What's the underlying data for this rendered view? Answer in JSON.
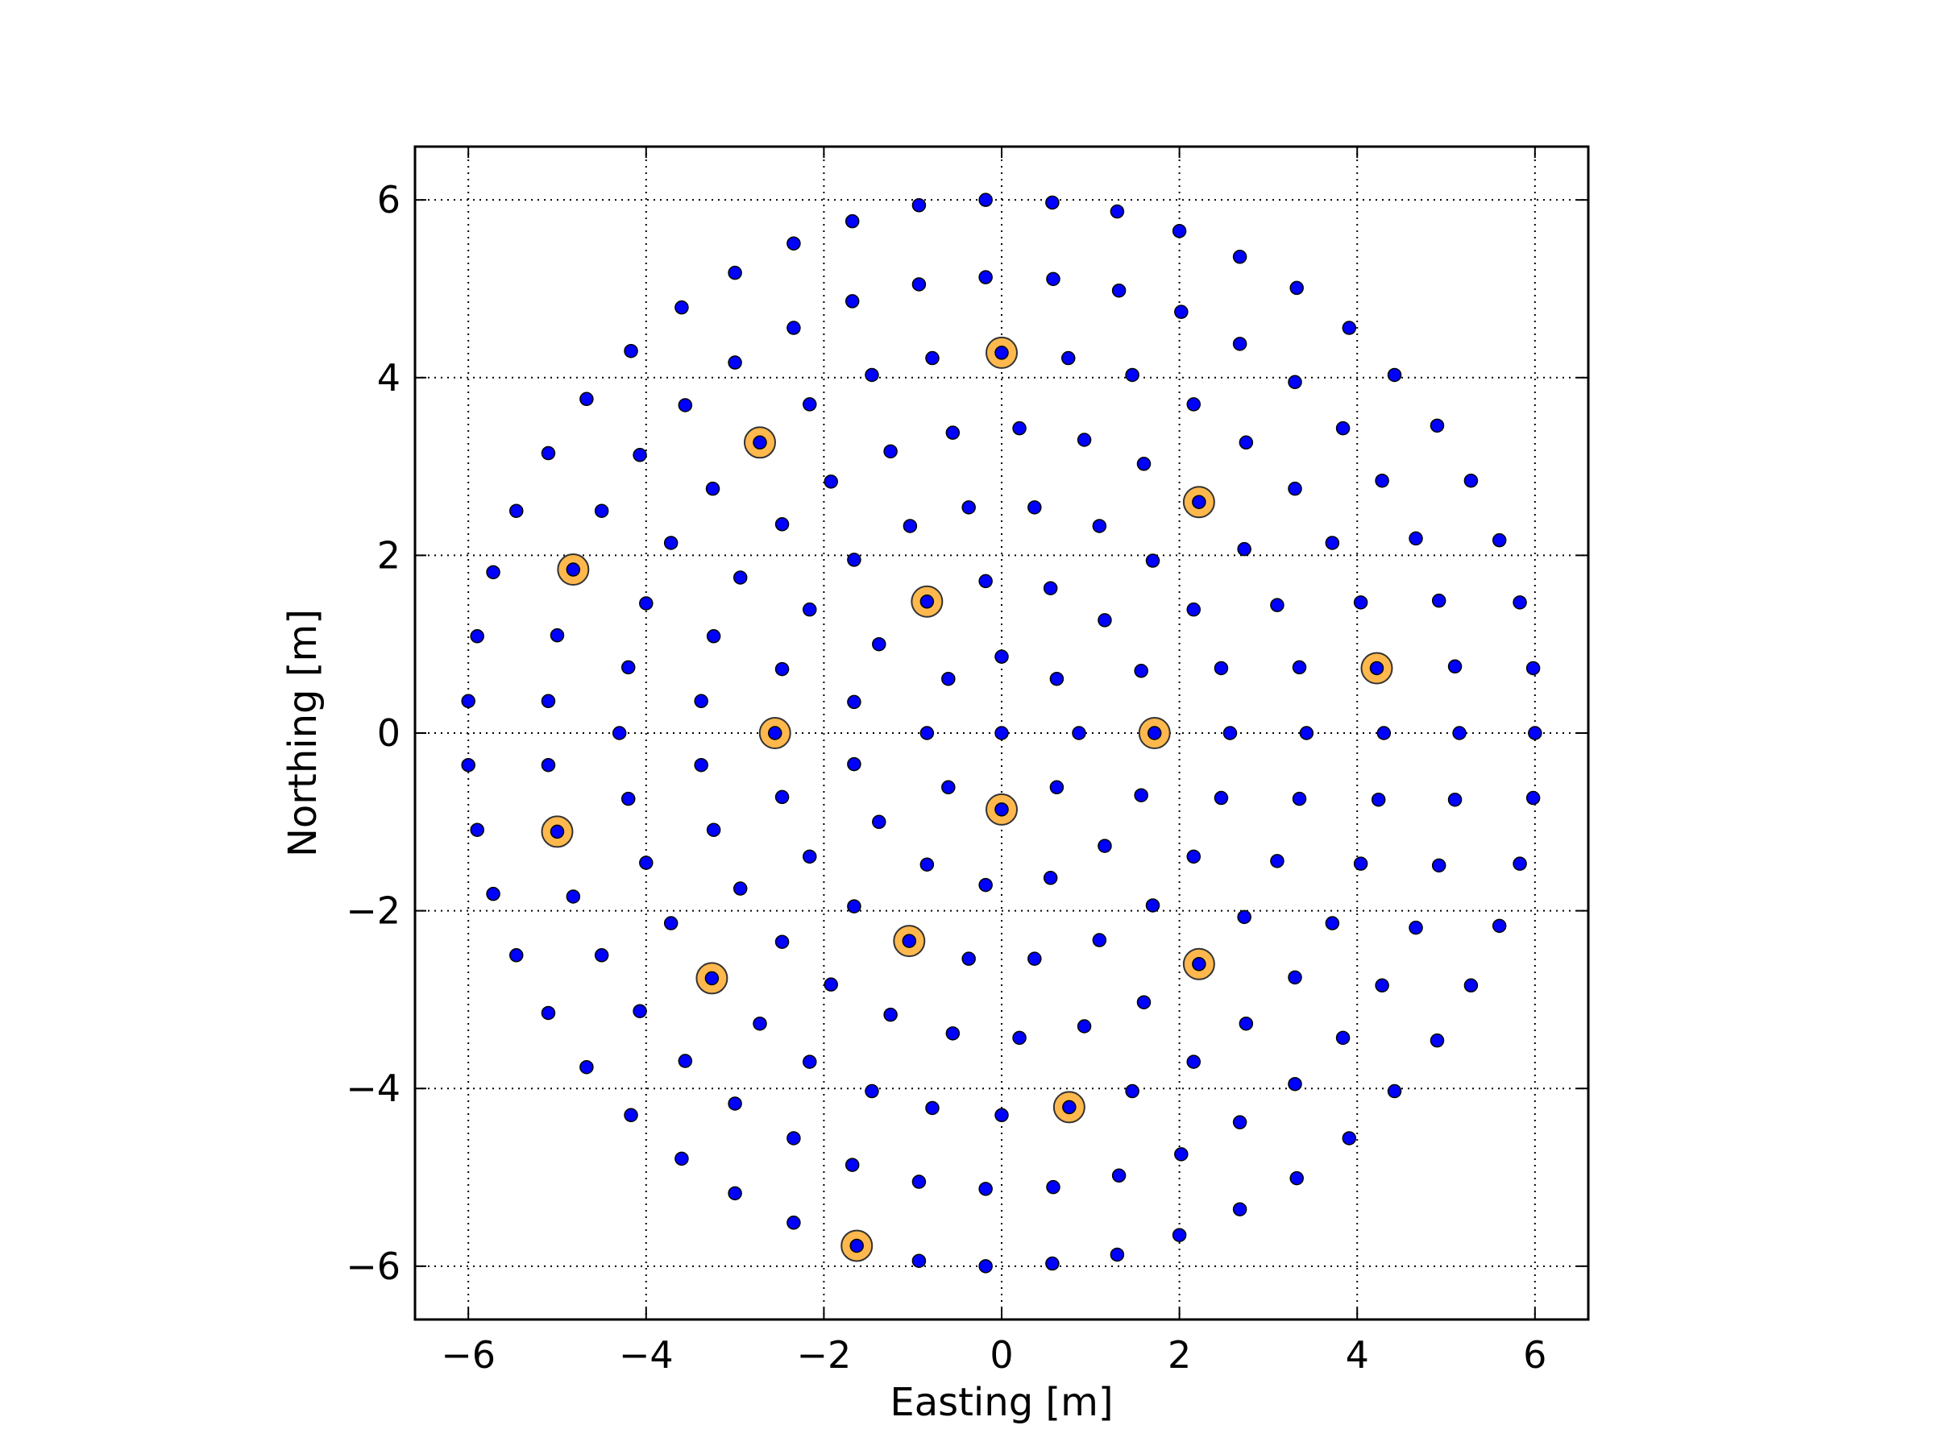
{
  "chart_data": {
    "type": "scatter",
    "title": "",
    "xlabel": "Easting [m]",
    "ylabel": "Northing [m]",
    "xlim": [
      -6.6,
      6.6
    ],
    "ylim": [
      -6.6,
      6.6
    ],
    "xticks": [
      -6,
      -4,
      -2,
      0,
      2,
      4,
      6
    ],
    "yticks": [
      -6,
      -4,
      -2,
      0,
      2,
      4,
      6
    ],
    "xtick_labels": [
      "−6",
      "−4",
      "−2",
      "0",
      "2",
      "4",
      "6"
    ],
    "ytick_labels": [
      "−6",
      "−4",
      "−2",
      "0",
      "2",
      "4",
      "6"
    ],
    "grid": true,
    "legend": "none",
    "colors": {
      "points": "#0000ff",
      "highlight": "#ffb84d"
    },
    "series": [
      {
        "values": [
          [
            -0.18,
            6.0
          ],
          [
            0.57,
            5.97
          ],
          [
            1.3,
            5.87
          ],
          [
            2.0,
            5.65
          ],
          [
            2.68,
            5.36
          ],
          [
            3.32,
            5.01
          ],
          [
            3.91,
            4.56
          ],
          [
            4.42,
            4.03
          ],
          [
            -0.18,
            5.13
          ],
          [
            0.58,
            5.11
          ],
          [
            1.32,
            4.98
          ],
          [
            2.02,
            4.74
          ],
          [
            2.68,
            4.38
          ],
          [
            3.3,
            3.95
          ],
          [
            3.84,
            3.43
          ],
          [
            4.9,
            3.46
          ],
          [
            0.2,
            3.43
          ],
          [
            0.93,
            3.3
          ],
          [
            1.6,
            3.03
          ],
          [
            2.16,
            3.7
          ],
          [
            2.75,
            3.27
          ],
          [
            3.3,
            2.75
          ],
          [
            4.28,
            2.84
          ],
          [
            5.28,
            2.84
          ],
          [
            -0.78,
            4.22
          ],
          [
            0.75,
            4.22
          ],
          [
            1.47,
            4.03
          ],
          [
            0.37,
            2.54
          ],
          [
            1.1,
            2.33
          ],
          [
            1.7,
            1.94
          ],
          [
            2.73,
            2.07
          ],
          [
            3.72,
            2.14
          ],
          [
            4.66,
            2.19
          ],
          [
            5.6,
            2.17
          ],
          [
            -0.18,
            1.71
          ],
          [
            0.55,
            1.63
          ],
          [
            1.16,
            1.27
          ],
          [
            2.16,
            1.39
          ],
          [
            3.1,
            1.44
          ],
          [
            4.04,
            1.47
          ],
          [
            4.92,
            1.49
          ],
          [
            5.83,
            1.47
          ],
          [
            0.0,
            0.86
          ],
          [
            0.62,
            0.61
          ],
          [
            1.57,
            0.7
          ],
          [
            2.47,
            0.73
          ],
          [
            3.35,
            0.74
          ],
          [
            5.1,
            0.75
          ],
          [
            5.98,
            0.73
          ],
          [
            -0.84,
            0.0
          ],
          [
            0.0,
            0.0
          ],
          [
            0.87,
            0.0
          ],
          [
            2.57,
            0.0
          ],
          [
            3.43,
            0.0
          ],
          [
            4.3,
            0.0
          ],
          [
            5.15,
            0.0
          ],
          [
            6.0,
            0.0
          ],
          [
            -0.18,
            -1.71
          ],
          [
            0.55,
            -1.63
          ],
          [
            1.16,
            -1.27
          ],
          [
            2.16,
            -1.39
          ],
          [
            3.1,
            -1.44
          ],
          [
            4.04,
            -1.47
          ],
          [
            4.92,
            -1.49
          ],
          [
            5.83,
            -1.47
          ],
          [
            0.62,
            -0.61
          ],
          [
            1.57,
            -0.7
          ],
          [
            2.47,
            -0.73
          ],
          [
            3.35,
            -0.74
          ],
          [
            4.24,
            -0.75
          ],
          [
            5.1,
            -0.75
          ],
          [
            5.98,
            -0.73
          ],
          [
            -0.6,
            -0.61
          ],
          [
            -0.6,
            0.61
          ],
          [
            -1.38,
            -1.0
          ],
          [
            -1.38,
            1.0
          ],
          [
            -1.66,
            -0.35
          ],
          [
            -1.66,
            0.35
          ],
          [
            -0.84,
            -1.48
          ],
          [
            -1.66,
            -1.95
          ],
          [
            -1.66,
            1.95
          ],
          [
            -1.03,
            2.33
          ],
          [
            -0.37,
            2.54
          ],
          [
            -1.25,
            3.17
          ],
          [
            -0.55,
            3.38
          ],
          [
            -1.46,
            4.03
          ],
          [
            -0.93,
            5.05
          ],
          [
            -0.93,
            5.94
          ],
          [
            -1.68,
            5.76
          ],
          [
            -1.68,
            4.86
          ],
          [
            -2.34,
            5.51
          ],
          [
            -2.34,
            4.56
          ],
          [
            -3.0,
            5.18
          ],
          [
            -3.0,
            4.17
          ],
          [
            -3.6,
            4.79
          ],
          [
            -4.17,
            4.3
          ],
          [
            -4.67,
            3.76
          ],
          [
            -5.1,
            3.15
          ],
          [
            -5.46,
            2.5
          ],
          [
            -5.72,
            1.81
          ],
          [
            -5.9,
            1.09
          ],
          [
            -6.0,
            0.36
          ],
          [
            -6.0,
            -0.36
          ],
          [
            -5.9,
            -1.09
          ],
          [
            -5.72,
            -1.81
          ],
          [
            -5.46,
            -2.5
          ],
          [
            -5.1,
            -3.15
          ],
          [
            -4.67,
            -3.76
          ],
          [
            -4.17,
            -4.3
          ],
          [
            -3.6,
            -4.79
          ],
          [
            -3.0,
            -5.18
          ],
          [
            -2.34,
            -5.51
          ],
          [
            -0.93,
            -5.94
          ],
          [
            -0.18,
            -6.0
          ],
          [
            0.57,
            -5.97
          ],
          [
            1.3,
            -5.87
          ],
          [
            2.0,
            -5.65
          ],
          [
            2.68,
            -5.36
          ],
          [
            3.32,
            -5.01
          ],
          [
            3.91,
            -4.56
          ],
          [
            4.42,
            -4.03
          ],
          [
            -2.16,
            3.7
          ],
          [
            -3.56,
            3.69
          ],
          [
            -4.07,
            3.13
          ],
          [
            -3.25,
            2.75
          ],
          [
            -2.47,
            2.35
          ],
          [
            -1.92,
            2.83
          ],
          [
            -3.72,
            2.14
          ],
          [
            -4.5,
            2.5
          ],
          [
            -2.94,
            1.75
          ],
          [
            -2.16,
            1.39
          ],
          [
            -4.0,
            1.46
          ],
          [
            -3.24,
            1.09
          ],
          [
            -5.0,
            1.1
          ],
          [
            -4.2,
            0.74
          ],
          [
            -2.47,
            0.72
          ],
          [
            -5.1,
            0.36
          ],
          [
            -3.38,
            0.36
          ],
          [
            -4.3,
            0.0
          ],
          [
            -5.1,
            -0.36
          ],
          [
            -3.38,
            -0.36
          ],
          [
            -4.2,
            -0.74
          ],
          [
            -2.47,
            -0.72
          ],
          [
            -3.24,
            -1.09
          ],
          [
            -4.0,
            -1.46
          ],
          [
            -2.16,
            -1.39
          ],
          [
            -2.94,
            -1.75
          ],
          [
            -4.82,
            -1.84
          ],
          [
            -3.72,
            -2.14
          ],
          [
            -2.47,
            -2.35
          ],
          [
            -4.5,
            -2.5
          ],
          [
            -4.07,
            -3.13
          ],
          [
            -2.72,
            -3.27
          ],
          [
            -1.92,
            -2.83
          ],
          [
            -3.56,
            -3.69
          ],
          [
            -2.16,
            -3.7
          ],
          [
            -1.25,
            -3.17
          ],
          [
            -0.55,
            -3.38
          ],
          [
            -0.37,
            -2.54
          ],
          [
            -1.46,
            -4.03
          ],
          [
            -0.78,
            -4.22
          ],
          [
            0.0,
            -4.3
          ],
          [
            -0.93,
            -5.05
          ],
          [
            -1.68,
            -4.86
          ],
          [
            -2.34,
            -4.56
          ],
          [
            -3.0,
            -4.17
          ],
          [
            -0.18,
            -5.13
          ],
          [
            0.58,
            -5.11
          ],
          [
            1.32,
            -4.98
          ],
          [
            2.02,
            -4.74
          ],
          [
            2.68,
            -4.38
          ],
          [
            3.3,
            -3.95
          ],
          [
            3.84,
            -3.43
          ],
          [
            4.9,
            -3.46
          ],
          [
            0.2,
            -3.43
          ],
          [
            0.93,
            -3.3
          ],
          [
            1.6,
            -3.03
          ],
          [
            2.16,
            -3.7
          ],
          [
            2.75,
            -3.27
          ],
          [
            3.3,
            -2.75
          ],
          [
            4.28,
            -2.84
          ],
          [
            5.28,
            -2.84
          ],
          [
            0.37,
            -2.54
          ],
          [
            1.1,
            -2.33
          ],
          [
            1.7,
            -1.94
          ],
          [
            2.73,
            -2.07
          ],
          [
            3.72,
            -2.14
          ],
          [
            4.66,
            -2.19
          ],
          [
            5.6,
            -2.17
          ],
          [
            1.47,
            -4.03
          ]
        ]
      },
      {
        "values": [
          [
            0.0,
            4.28
          ],
          [
            -2.72,
            3.27
          ],
          [
            2.22,
            2.6
          ],
          [
            -4.82,
            1.84
          ],
          [
            -0.84,
            1.48
          ],
          [
            4.22,
            0.73
          ],
          [
            -2.55,
            0.0
          ],
          [
            1.72,
            0.0
          ],
          [
            0.0,
            -0.86
          ],
          [
            -5.0,
            -1.11
          ],
          [
            -1.04,
            -2.34
          ],
          [
            2.22,
            -2.6
          ],
          [
            -3.26,
            -2.76
          ],
          [
            0.76,
            -4.21
          ],
          [
            -1.63,
            -5.77
          ]
        ]
      }
    ]
  }
}
